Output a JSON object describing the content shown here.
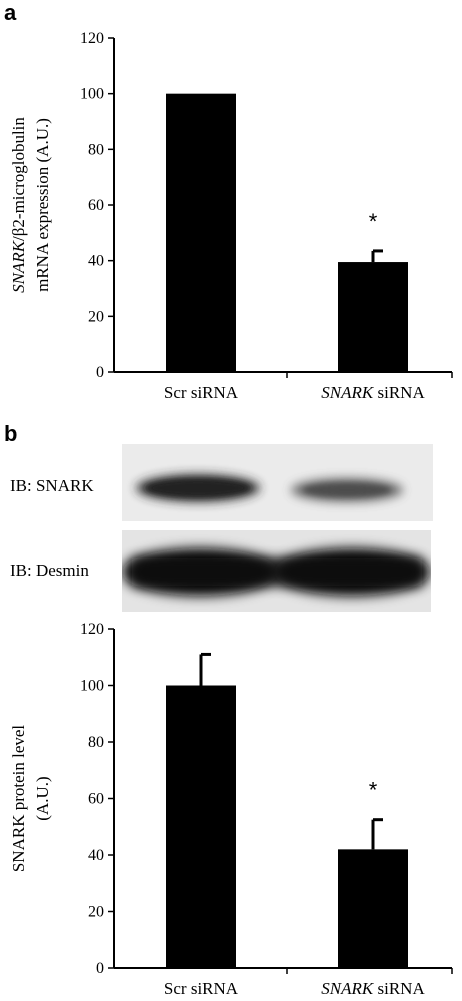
{
  "panels": {
    "a_letter": "a",
    "b_letter": "b"
  },
  "blots": {
    "snark_label": "IB: SNARK",
    "desmin_label": "IB: Desmin"
  },
  "chart_data": [
    {
      "type": "bar",
      "panel": "a",
      "categories": [
        "Scr siRNA",
        "SNARK siRNA"
      ],
      "category_italic_part": [
        "",
        "SNARK"
      ],
      "values": [
        100,
        39.5
      ],
      "errors": [
        0,
        4
      ],
      "significance": [
        "",
        "*"
      ],
      "ylabel_lines": [
        "SNARK/β2-microglobulin",
        "mRNA expression (A.U.)"
      ],
      "ylabel_italic_part": "SNARK",
      "ylim": [
        0,
        120
      ],
      "yticks": [
        0,
        20,
        40,
        60,
        80,
        100,
        120
      ],
      "bar_color": "#000000"
    },
    {
      "type": "bar",
      "panel": "b",
      "categories": [
        "Scr siRNA",
        "SNARK siRNA"
      ],
      "category_italic_part": [
        "",
        "SNARK"
      ],
      "values": [
        100,
        42
      ],
      "errors": [
        11,
        10.5
      ],
      "significance": [
        "",
        "*"
      ],
      "ylabel_lines": [
        "SNARK protein level",
        "(A.U.)"
      ],
      "ylim": [
        0,
        120
      ],
      "yticks": [
        0,
        20,
        40,
        60,
        80,
        100,
        120
      ],
      "bar_color": "#000000"
    }
  ]
}
